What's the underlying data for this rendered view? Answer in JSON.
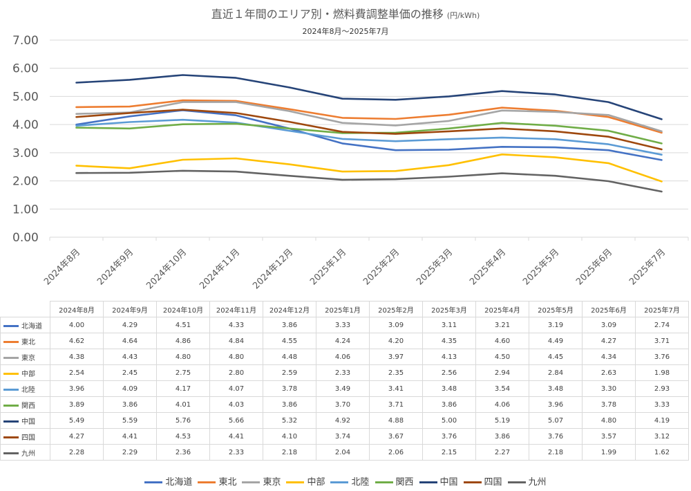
{
  "chart_data": {
    "type": "line",
    "title": "直近１年間のエリア別・燃料費調整単価の推移",
    "title_unit": "(円/kWh)",
    "subtitle": "2024年8月～2025年7月",
    "categories": [
      "2024年8月",
      "2024年9月",
      "2024年10月",
      "2024年11月",
      "2024年12月",
      "2025年1月",
      "2025年2月",
      "2025年3月",
      "2025年4月",
      "2025年5月",
      "2025年6月",
      "2025年7月"
    ],
    "y_ticks": [
      "7.00",
      "6.00",
      "5.00",
      "4.00",
      "3.00",
      "2.00",
      "1.00",
      "0.00"
    ],
    "ylim": [
      0,
      7
    ],
    "grid": true,
    "legend_position": "bottom",
    "series": [
      {
        "name": "北海道",
        "color": "#4472C4",
        "values": [
          4.0,
          4.29,
          4.51,
          4.33,
          3.86,
          3.33,
          3.09,
          3.11,
          3.21,
          3.19,
          3.09,
          2.74
        ],
        "labels": [
          "4.00",
          "4.29",
          "4.51",
          "4.33",
          "3.86",
          "3.33",
          "3.09",
          "3.11",
          "3.21",
          "3.19",
          "3.09",
          "2.74"
        ]
      },
      {
        "name": "東北",
        "color": "#ED7D31",
        "values": [
          4.62,
          4.64,
          4.86,
          4.84,
          4.55,
          4.24,
          4.2,
          4.35,
          4.6,
          4.49,
          4.27,
          3.71
        ],
        "labels": [
          "4.62",
          "4.64",
          "4.86",
          "4.84",
          "4.55",
          "4.24",
          "4.20",
          "4.35",
          "4.60",
          "4.49",
          "4.27",
          "3.71"
        ]
      },
      {
        "name": "東京",
        "color": "#A5A5A5",
        "values": [
          4.38,
          4.43,
          4.8,
          4.8,
          4.48,
          4.06,
          3.97,
          4.13,
          4.5,
          4.45,
          4.34,
          3.76
        ],
        "labels": [
          "4.38",
          "4.43",
          "4.80",
          "4.80",
          "4.48",
          "4.06",
          "3.97",
          "4.13",
          "4.50",
          "4.45",
          "4.34",
          "3.76"
        ]
      },
      {
        "name": "中部",
        "color": "#FFC000",
        "values": [
          2.54,
          2.45,
          2.75,
          2.8,
          2.59,
          2.33,
          2.35,
          2.56,
          2.94,
          2.84,
          2.63,
          1.98
        ],
        "labels": [
          "2.54",
          "2.45",
          "2.75",
          "2.80",
          "2.59",
          "2.33",
          "2.35",
          "2.56",
          "2.94",
          "2.84",
          "2.63",
          "1.98"
        ]
      },
      {
        "name": "北陸",
        "color": "#5B9BD5",
        "values": [
          3.96,
          4.09,
          4.17,
          4.07,
          3.78,
          3.49,
          3.41,
          3.48,
          3.54,
          3.48,
          3.3,
          2.93
        ],
        "labels": [
          "3.96",
          "4.09",
          "4.17",
          "4.07",
          "3.78",
          "3.49",
          "3.41",
          "3.48",
          "3.54",
          "3.48",
          "3.30",
          "2.93"
        ]
      },
      {
        "name": "関西",
        "color": "#70AD47",
        "values": [
          3.89,
          3.86,
          4.01,
          4.03,
          3.86,
          3.7,
          3.71,
          3.86,
          4.06,
          3.96,
          3.78,
          3.33
        ],
        "labels": [
          "3.89",
          "3.86",
          "4.01",
          "4.03",
          "3.86",
          "3.70",
          "3.71",
          "3.86",
          "4.06",
          "3.96",
          "3.78",
          "3.33"
        ]
      },
      {
        "name": "中国",
        "color": "#264478",
        "values": [
          5.49,
          5.59,
          5.76,
          5.66,
          5.32,
          4.92,
          4.88,
          5.0,
          5.19,
          5.07,
          4.8,
          4.19
        ],
        "labels": [
          "5.49",
          "5.59",
          "5.76",
          "5.66",
          "5.32",
          "4.92",
          "4.88",
          "5.00",
          "5.19",
          "5.07",
          "4.80",
          "4.19"
        ]
      },
      {
        "name": "四国",
        "color": "#9E480E",
        "values": [
          4.27,
          4.41,
          4.53,
          4.41,
          4.1,
          3.74,
          3.67,
          3.76,
          3.86,
          3.76,
          3.57,
          3.12
        ],
        "labels": [
          "4.27",
          "4.41",
          "4.53",
          "4.41",
          "4.10",
          "3.74",
          "3.67",
          "3.76",
          "3.86",
          "3.76",
          "3.57",
          "3.12"
        ]
      },
      {
        "name": "九州",
        "color": "#636363",
        "values": [
          2.28,
          2.29,
          2.36,
          2.33,
          2.18,
          2.04,
          2.06,
          2.15,
          2.27,
          2.18,
          1.99,
          1.62
        ],
        "labels": [
          "2.28",
          "2.29",
          "2.36",
          "2.33",
          "2.18",
          "2.04",
          "2.06",
          "2.15",
          "2.27",
          "2.18",
          "1.99",
          "1.62"
        ]
      }
    ]
  }
}
